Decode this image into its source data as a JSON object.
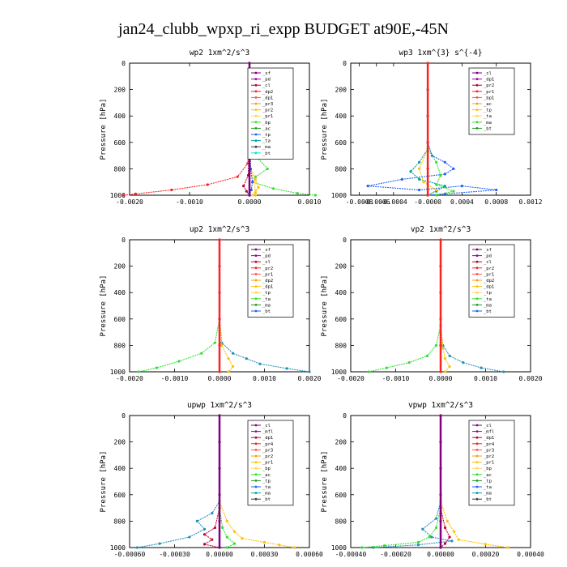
{
  "title": "jan24_clubb_wpxp_ri_expp  BUDGET at90E,-45N",
  "chart_data": [
    {
      "type": "line",
      "title": "wp2   1xm^2/s^3",
      "ylabel": "Pressure [hPa]",
      "xlim": [
        -0.002,
        0.001
      ],
      "xticks": [
        "-0.0020",
        "-0.0010",
        "0.0000",
        "0.0010"
      ],
      "xtick_values": [
        -0.002,
        -0.001,
        0.0,
        0.001
      ],
      "ylim": [
        1000,
        0
      ],
      "yticks": [
        "0",
        "200",
        "400",
        "600",
        "800",
        "1000"
      ],
      "legend": [
        "_sf",
        "_pd",
        "_cl",
        "_dp2",
        "_dp1",
        "_pr3",
        "_pr2",
        "_pr1",
        "_bp",
        "_ac",
        "_tp",
        "_ta",
        "_ma",
        "_bt"
      ],
      "series": [
        {
          "name": "_dp1",
          "color": "#ff2020",
          "x": [
            0,
            0,
            0,
            0,
            -3e-05,
            -0.0002,
            -0.0007,
            -0.0013,
            -0.0019,
            -0.0021
          ],
          "y": [
            0,
            200,
            400,
            600,
            760,
            860,
            920,
            960,
            990,
            1000
          ]
        },
        {
          "name": "_ac",
          "color": "#30e030",
          "x": [
            0,
            0,
            0,
            0.0001,
            0.0003,
            0.0001,
            5e-05,
            0.0004,
            0.0008,
            0.0011
          ],
          "y": [
            0,
            200,
            400,
            700,
            800,
            860,
            900,
            950,
            985,
            1000
          ]
        },
        {
          "name": "_pr3",
          "color": "#ffc000",
          "x": [
            0,
            0,
            0,
            2e-05,
            0.0001,
            0.00015,
            0.0001,
            0.0001
          ],
          "y": [
            0,
            300,
            700,
            800,
            880,
            940,
            980,
            1000
          ]
        },
        {
          "name": "_pr1",
          "color": "#ffd84a",
          "x": [
            0,
            0,
            2e-05,
            8e-05,
            0.0001,
            5e-05
          ],
          "y": [
            0,
            400,
            800,
            900,
            960,
            1000
          ]
        },
        {
          "name": "_tp",
          "color": "#2060ff",
          "x": [
            0,
            0,
            2e-05,
            5e-05,
            3e-05,
            0.0
          ],
          "y": [
            0,
            400,
            800,
            900,
            960,
            1000
          ]
        },
        {
          "name": "_cl",
          "color": "#b00030",
          "x": [
            0,
            0,
            -2e-05,
            -0.0001,
            -5e-05,
            0.0
          ],
          "y": [
            0,
            600,
            850,
            930,
            970,
            1000
          ]
        },
        {
          "name": "_pd",
          "color": "#800080",
          "x": [
            0,
            0,
            0,
            0,
            0,
            0
          ],
          "y": [
            0,
            200,
            400,
            600,
            800,
            1000
          ]
        }
      ]
    },
    {
      "type": "line",
      "title": "wp3   1xm^{3} s^{-4}",
      "ylabel": "Pressure [hPa]",
      "xlim": [
        -0.0009,
        0.0012
      ],
      "xticks": [
        "-0.0008",
        "-0.0006",
        "-0.0004",
        "-0.0000",
        "0.0004",
        "0.0008",
        "0.0012"
      ],
      "xtick_values": [
        -0.0008,
        -0.0006,
        -0.0004,
        0.0,
        0.0004,
        0.0008,
        0.0012
      ],
      "ylim": [
        1000,
        0
      ],
      "yticks": [
        "0",
        "200",
        "400",
        "600",
        "800",
        "1000"
      ],
      "legend": [
        "_cl",
        "_dp1",
        "_pr2",
        "_pr1",
        "_bp1",
        "_ac",
        "_tp",
        "_ta",
        "_ma",
        "_bt"
      ],
      "series": [
        {
          "name": "_tp",
          "color": "#2060ff",
          "x": [
            0,
            0,
            5e-05,
            0.0002,
            0.0003,
            0.0002,
            -0.0003,
            -0.0007,
            -0.0001,
            0.0004,
            0.0008,
            0.0002,
            0.0
          ],
          "y": [
            0,
            600,
            700,
            750,
            800,
            840,
            880,
            930,
            960,
            930,
            960,
            990,
            1000
          ]
        },
        {
          "name": "_ta",
          "color": "#00a0a0",
          "x": [
            0,
            0,
            -0.0001,
            -0.0002,
            -0.0001,
            0.0002,
            0.0001,
            0.0
          ],
          "y": [
            0,
            650,
            750,
            820,
            880,
            930,
            970,
            1000
          ]
        },
        {
          "name": "_ac",
          "color": "#30e030",
          "x": [
            0,
            0,
            0.0001,
            0.00015,
            0.0001,
            0.0003,
            0.0001
          ],
          "y": [
            0,
            650,
            750,
            850,
            920,
            970,
            1000
          ]
        },
        {
          "name": "_pr1",
          "color": "#ffc000",
          "x": [
            0,
            0,
            -0.0001,
            -5e-05,
            0.0001,
            0.0
          ],
          "y": [
            0,
            650,
            800,
            900,
            960,
            1000
          ]
        },
        {
          "name": "_cl",
          "color": "#ff2020",
          "x": [
            0,
            0,
            0,
            0,
            0,
            0
          ],
          "y": [
            0,
            200,
            400,
            600,
            800,
            1000
          ]
        }
      ]
    },
    {
      "type": "line",
      "title": "up2   1xm^2/s^3",
      "ylabel": "Pressure [hPa]",
      "xlim": [
        -0.002,
        0.002
      ],
      "xticks": [
        "-0.0020",
        "-0.0010",
        "0.0000",
        "0.0010",
        "0.0020"
      ],
      "xtick_values": [
        -0.002,
        -0.001,
        0.0,
        0.001,
        0.002
      ],
      "ylim": [
        1000,
        0
      ],
      "yticks": [
        "0",
        "200",
        "400",
        "600",
        "800",
        "1000"
      ],
      "legend": [
        "_sf",
        "_pd",
        "_cl",
        "_pr2",
        "_pr1",
        "_dp2",
        "_dp1",
        "_tp",
        "_ta",
        "_ma",
        "_bt"
      ],
      "series": [
        {
          "name": "_tp",
          "color": "#2090c0",
          "x": [
            0,
            0,
            5e-05,
            0.0003,
            0.0006,
            0.0009,
            0.0015,
            0.002
          ],
          "y": [
            0,
            600,
            780,
            860,
            900,
            940,
            975,
            1000
          ]
        },
        {
          "name": "_dp1",
          "color": "#30e030",
          "x": [
            0,
            0,
            -0.0001,
            -0.0004,
            -0.0009,
            -0.0014,
            -0.0018
          ],
          "y": [
            0,
            600,
            780,
            860,
            920,
            970,
            1000
          ]
        },
        {
          "name": "_pr1",
          "color": "#ffc000",
          "x": [
            0,
            0,
            5e-05,
            0.0002,
            0.0003,
            0.0002
          ],
          "y": [
            0,
            600,
            800,
            900,
            960,
            1000
          ]
        },
        {
          "name": "_sf",
          "color": "#ff2020",
          "x": [
            0,
            0,
            0,
            0,
            0,
            0
          ],
          "y": [
            0,
            200,
            400,
            600,
            800,
            1000
          ]
        }
      ]
    },
    {
      "type": "line",
      "title": "vp2   1xm^2/s^3",
      "ylabel": "Pressure [hPa]",
      "xlim": [
        -0.002,
        0.002
      ],
      "xticks": [
        "-0.0020",
        "-0.0010",
        "0.0000",
        "0.0010",
        "0.0020"
      ],
      "xtick_values": [
        -0.002,
        -0.001,
        0.0,
        0.001,
        0.002
      ],
      "ylim": [
        1000,
        0
      ],
      "yticks": [
        "0",
        "200",
        "400",
        "600",
        "800",
        "1000"
      ],
      "legend": [
        "_sf",
        "_pd",
        "_cl",
        "_pr2",
        "_pr1",
        "_dp2",
        "_dp1",
        "_tp",
        "_ta",
        "_ma",
        "_bt"
      ],
      "series": [
        {
          "name": "_tp",
          "color": "#2090c0",
          "x": [
            0,
            0,
            5e-05,
            0.0002,
            0.0005,
            0.0009,
            0.0014
          ],
          "y": [
            0,
            650,
            800,
            880,
            930,
            970,
            1000
          ]
        },
        {
          "name": "_dp1",
          "color": "#30e030",
          "x": [
            0,
            0,
            -0.0001,
            -0.0003,
            -0.0007,
            -0.0012,
            -0.0016
          ],
          "y": [
            0,
            650,
            800,
            880,
            930,
            970,
            1000
          ]
        },
        {
          "name": "_pr1",
          "color": "#ffc000",
          "x": [
            0,
            0,
            5e-05,
            0.0001,
            0.0002,
            0.0001
          ],
          "y": [
            0,
            650,
            820,
            900,
            960,
            1000
          ]
        },
        {
          "name": "_sf",
          "color": "#ff2020",
          "x": [
            0,
            0,
            0,
            0,
            0,
            0
          ],
          "y": [
            0,
            200,
            400,
            600,
            800,
            1000
          ]
        }
      ]
    },
    {
      "type": "line",
      "title": "upwp   1xm^2/s^3",
      "ylabel": "Pressure [hPa]",
      "xlim": [
        -0.0006,
        0.0006
      ],
      "xticks": [
        "-0.00060",
        "-0.00030",
        "0.00000",
        "0.00030",
        "0.00060"
      ],
      "xtick_values": [
        -0.0006,
        -0.0003,
        0.0,
        0.0003,
        0.0006
      ],
      "ylim": [
        1000,
        0
      ],
      "yticks": [
        "0",
        "200",
        "400",
        "600",
        "800",
        "1000"
      ],
      "legend": [
        "_cl",
        "_mfl",
        "_dp1",
        "_pr4",
        "_pr3",
        "_pr2",
        "_pr1",
        "_bp",
        "_ac",
        "_tp",
        "_ta",
        "_ma",
        "_bt"
      ],
      "series": [
        {
          "name": "_tp",
          "color": "#2090c0",
          "x": [
            0,
            0,
            -5e-05,
            -0.00015,
            -0.0001,
            -0.0002,
            -0.0004,
            -0.00055
          ],
          "y": [
            0,
            650,
            740,
            800,
            860,
            920,
            970,
            1000
          ]
        },
        {
          "name": "_pr2",
          "color": "#ffc000",
          "x": [
            0,
            0,
            5e-05,
            0.0001,
            0.00015,
            0.0003,
            0.0004,
            0.0005
          ],
          "y": [
            0,
            650,
            800,
            880,
            930,
            960,
            980,
            1000
          ]
        },
        {
          "name": "_dp1",
          "color": "#c00030",
          "x": [
            0,
            0,
            -3e-05,
            -0.0001,
            -5e-05,
            -0.0001,
            0.0
          ],
          "y": [
            0,
            700,
            850,
            900,
            940,
            975,
            1000
          ]
        },
        {
          "name": "_ac",
          "color": "#30e030",
          "x": [
            0,
            0,
            2e-05,
            5e-05,
            0.0001,
            5e-05
          ],
          "y": [
            0,
            700,
            850,
            920,
            970,
            1000
          ]
        },
        {
          "name": "_cl",
          "color": "#800080",
          "x": [
            0,
            0,
            0,
            0,
            0,
            0
          ],
          "y": [
            0,
            200,
            400,
            600,
            800,
            1000
          ]
        }
      ]
    },
    {
      "type": "line",
      "title": "vpwp   1xm^2/s^3",
      "ylabel": "Pressure [hPa]",
      "xlim": [
        -0.0004,
        0.0004
      ],
      "xticks": [
        "-0.00040",
        "-0.00020",
        "0.00000",
        "0.00020",
        "0.00040"
      ],
      "xtick_values": [
        -0.0004,
        -0.0002,
        0.0,
        0.0002,
        0.0004
      ],
      "ylim": [
        1000,
        0
      ],
      "yticks": [
        "0",
        "200",
        "400",
        "600",
        "800",
        "1000"
      ],
      "legend": [
        "_cl",
        "_mfl",
        "_dp1",
        "_pr4",
        "_pr3",
        "_pr2",
        "_pr1",
        "_bp",
        "_ac",
        "_tp",
        "_ta",
        "_ma",
        "_bt"
      ],
      "series": [
        {
          "name": "_tp",
          "color": "#2090c0",
          "x": [
            0,
            0,
            -2e-05,
            -8e-05,
            -4e-05,
            5e-05,
            -0.0001,
            -0.0003
          ],
          "y": [
            0,
            650,
            780,
            860,
            920,
            950,
            980,
            1000
          ]
        },
        {
          "name": "_pr2",
          "color": "#ffc000",
          "x": [
            0,
            0,
            3e-05,
            6e-05,
            8e-05,
            0.0002,
            0.0003
          ],
          "y": [
            0,
            650,
            800,
            880,
            940,
            975,
            1000
          ]
        },
        {
          "name": "_ac",
          "color": "#30e030",
          "x": [
            0,
            0,
            -2e-05,
            -5e-05,
            -0.0001,
            -0.00025,
            -0.00035
          ],
          "y": [
            0,
            700,
            850,
            920,
            960,
            985,
            1000
          ]
        },
        {
          "name": "_dp1",
          "color": "#c00030",
          "x": [
            0,
            0,
            2e-05,
            4e-05,
            2e-05,
            0.0
          ],
          "y": [
            0,
            700,
            850,
            920,
            970,
            1000
          ]
        },
        {
          "name": "_cl",
          "color": "#800080",
          "x": [
            0,
            0,
            0,
            0,
            0,
            0
          ],
          "y": [
            0,
            200,
            400,
            600,
            800,
            1000
          ]
        }
      ]
    }
  ]
}
